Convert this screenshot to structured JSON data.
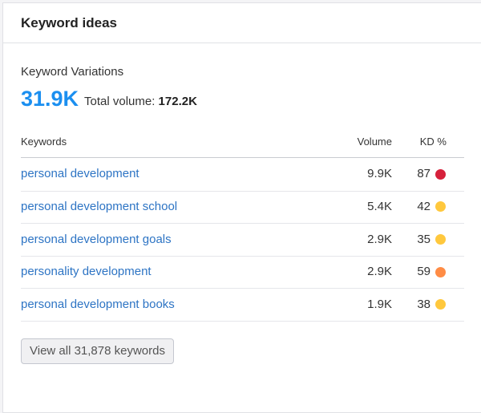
{
  "header": {
    "title": "Keyword ideas"
  },
  "summary": {
    "label": "Keyword Variations",
    "value": "31.9K",
    "total_label": "Total volume:",
    "total_value": "172.2K"
  },
  "table": {
    "columns": [
      "Keywords",
      "Volume",
      "KD %"
    ],
    "rows": [
      {
        "keyword": "personal development",
        "volume": "9.9K",
        "kd": 87,
        "kd_color": "#d6213b"
      },
      {
        "keyword": "personal development school",
        "volume": "5.4K",
        "kd": 42,
        "kd_color": "#ffc83d"
      },
      {
        "keyword": "personal development goals",
        "volume": "2.9K",
        "kd": 35,
        "kd_color": "#ffc83d"
      },
      {
        "keyword": "personality development",
        "volume": "2.9K",
        "kd": 59,
        "kd_color": "#ff8c45"
      },
      {
        "keyword": "personal development books",
        "volume": "1.9K",
        "kd": 38,
        "kd_color": "#ffc83d"
      }
    ]
  },
  "button": {
    "label": "View all 31,878 keywords"
  }
}
